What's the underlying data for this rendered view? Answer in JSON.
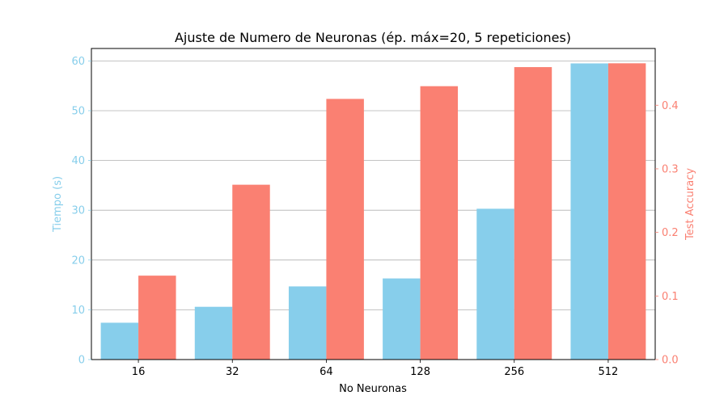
{
  "chart_data": {
    "type": "bar",
    "title": "Ajuste de Numero de Neuronas (ép. máx=20, 5 repeticiones)",
    "xlabel": "No Neuronas",
    "categories": [
      "16",
      "32",
      "64",
      "128",
      "256",
      "512"
    ],
    "series": [
      {
        "axis": "left",
        "color": "#87ceeb",
        "values": [
          7.4,
          10.6,
          14.7,
          16.3,
          30.3,
          59.5
        ]
      },
      {
        "axis": "right",
        "color": "#fa8072",
        "values": [
          0.132,
          0.275,
          0.41,
          0.43,
          0.46,
          0.466
        ]
      }
    ],
    "y_left": {
      "label": "Tiempo (s)",
      "color": "#87ceeb",
      "range": [
        0,
        62.5
      ],
      "ticks": [
        "0",
        "10",
        "20",
        "30",
        "40",
        "50",
        "60"
      ]
    },
    "y_right": {
      "label": "Test Accuracy",
      "color": "#fa8072",
      "range": [
        0,
        0.4893
      ],
      "ticks": [
        "0.0",
        "0.1",
        "0.2",
        "0.3",
        "0.4"
      ]
    },
    "grid": "horizontal (left axis)",
    "legend": "none"
  }
}
